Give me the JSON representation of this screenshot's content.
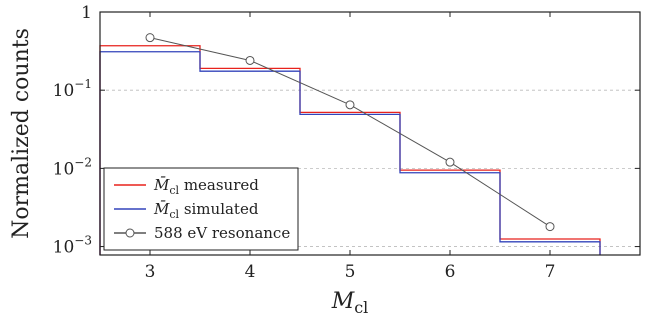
{
  "chart_data": {
    "type": "step-line",
    "xlabel_base": "M",
    "xlabel_sub": "cl",
    "ylabel": "Normalized counts",
    "xlim": [
      2.5,
      7.9
    ],
    "ylim": [
      0.00078,
      1
    ],
    "yscale": "log",
    "grid": "horizontal-dashed",
    "legend_position": "bottom-left",
    "x_ticks": [
      3,
      4,
      5,
      6,
      7
    ],
    "x_tick_labels": [
      "3",
      "4",
      "5",
      "6",
      "7"
    ],
    "y_ticks": [
      1,
      0.1,
      0.01,
      0.001
    ],
    "y_tick_labels": {
      "t0": {
        "base": "1",
        "exp": ""
      },
      "t1": {
        "base": "10",
        "exp": "−1"
      },
      "t2": {
        "base": "10",
        "exp": "−2"
      },
      "t3": {
        "base": "10",
        "exp": "−3"
      }
    },
    "series": [
      {
        "name": "measured",
        "label_prefix": "M̄",
        "label_sub": "cl",
        "color": "#e8221c",
        "style": "step",
        "edges": [
          2.5,
          3.5,
          4.5,
          5.5,
          6.5,
          7.5
        ],
        "values": [
          0.37,
          0.19,
          0.052,
          0.0095,
          0.00125
        ]
      },
      {
        "name": "simulated",
        "label_prefix": "M̄",
        "label_sub": "cl",
        "color": "#3344bb",
        "style": "step",
        "edges": [
          2.5,
          3.5,
          4.5,
          5.5,
          6.5,
          7.5
        ],
        "values": [
          0.31,
          0.175,
          0.049,
          0.0088,
          0.00115
        ]
      },
      {
        "name": "588 eV resonance",
        "color": "#555555",
        "style": "line-marker",
        "x": [
          3,
          4,
          5,
          6,
          7
        ],
        "values": [
          0.47,
          0.24,
          0.065,
          0.012,
          0.0018
        ]
      }
    ]
  }
}
